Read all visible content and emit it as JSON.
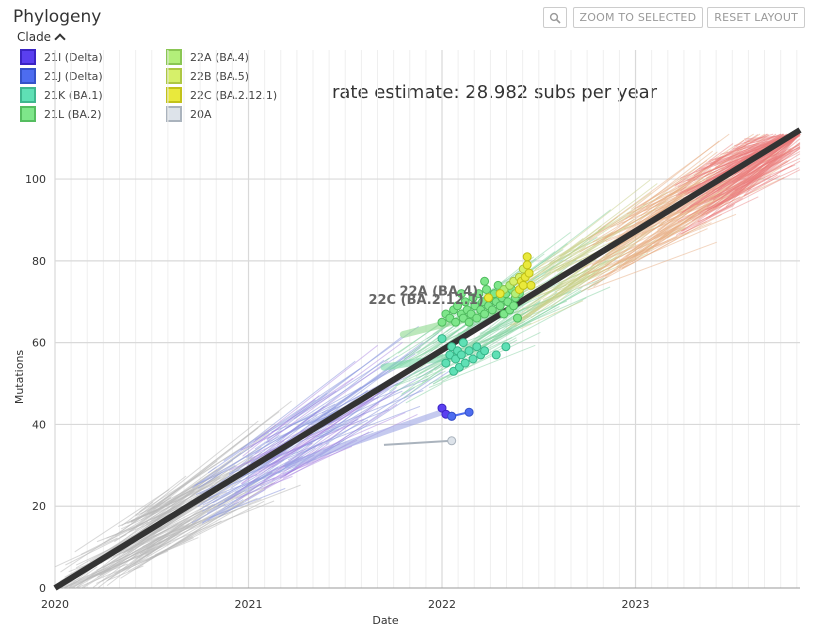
{
  "panel": {
    "title": "Phylogeny"
  },
  "toolbar": {
    "zoom_icon": "magnifier-icon",
    "zoom_label": "ZOOM TO SELECTED",
    "reset_label": "RESET LAYOUT"
  },
  "legend": {
    "toggle_label": "Clade",
    "items": [
      {
        "label": "21I (Delta)",
        "fill": "#5a3ff0",
        "stroke": "#3b24c4"
      },
      {
        "label": "21J (Delta)",
        "fill": "#4d6cf0",
        "stroke": "#3552c9"
      },
      {
        "label": "21K (BA.1)",
        "fill": "#5fe0b5",
        "stroke": "#3fb78f"
      },
      {
        "label": "21L (BA.2)",
        "fill": "#7ee68a",
        "stroke": "#55bd60"
      },
      {
        "label": "22A (BA.4)",
        "fill": "#b3ef7a",
        "stroke": "#8ac653"
      },
      {
        "label": "22B (BA.5)",
        "fill": "#d6f06a",
        "stroke": "#adc743"
      },
      {
        "label": "22C (BA.2.12.1)",
        "fill": "#e9e93c",
        "stroke": "#c2c21a"
      },
      {
        "label": "20A",
        "fill": "#dde3ea",
        "stroke": "#aab3bd"
      }
    ]
  },
  "annotation": {
    "rate_text": "rate estimate: 28.982 subs per year"
  },
  "chart_data": {
    "type": "scatter",
    "title": "rate estimate: 28.982 subs per year",
    "xlabel": "Date",
    "ylabel": "Mutations",
    "xlim": [
      2020.0,
      2023.85
    ],
    "ylim": [
      0,
      112
    ],
    "x_ticks": [
      2020,
      2021,
      2022,
      2023
    ],
    "x_tick_labels": [
      "2020",
      "2021",
      "2022",
      "2023"
    ],
    "y_ticks": [
      0,
      20,
      40,
      60,
      80,
      100
    ],
    "grid": true,
    "regression": {
      "x": [
        2020.0,
        2023.85
      ],
      "y": [
        0,
        112
      ],
      "rate": 28.982,
      "color": "#333333"
    },
    "clade_labels": [
      {
        "text": "22A (BA.4)",
        "x": 2021.78,
        "y": 71.5
      },
      {
        "text": "22C (BA.2.12.1)",
        "x": 2021.62,
        "y": 69.5
      }
    ],
    "series": [
      {
        "name": "21I (Delta)",
        "color": "#5a3ff0",
        "edge": "#3b24c4",
        "points": [
          [
            2022.0,
            44
          ],
          [
            2022.02,
            42.5
          ],
          [
            2022.05,
            42
          ]
        ]
      },
      {
        "name": "21J (Delta)",
        "color": "#4d6cf0",
        "edge": "#3552c9",
        "points": [
          [
            2022.05,
            42
          ],
          [
            2022.14,
            43
          ]
        ]
      },
      {
        "name": "20A",
        "color": "#dde3ea",
        "edge": "#aab3bd",
        "points": [
          [
            2022.05,
            36
          ]
        ]
      },
      {
        "name": "21K (BA.1)",
        "color": "#5fe0b5",
        "edge": "#36b488",
        "points": [
          [
            2022.0,
            61
          ],
          [
            2022.02,
            55
          ],
          [
            2022.04,
            57
          ],
          [
            2022.05,
            59
          ],
          [
            2022.06,
            53
          ],
          [
            2022.07,
            56
          ],
          [
            2022.08,
            58
          ],
          [
            2022.09,
            54
          ],
          [
            2022.1,
            57
          ],
          [
            2022.11,
            60
          ],
          [
            2022.12,
            55
          ],
          [
            2022.14,
            58
          ],
          [
            2022.16,
            56
          ],
          [
            2022.18,
            59
          ],
          [
            2022.2,
            57
          ],
          [
            2022.22,
            58
          ],
          [
            2022.28,
            57
          ],
          [
            2022.33,
            59
          ]
        ]
      },
      {
        "name": "21L (BA.2)",
        "color": "#7ee68a",
        "edge": "#4fba5e",
        "points": [
          [
            2022.0,
            65
          ],
          [
            2022.02,
            67
          ],
          [
            2022.04,
            66
          ],
          [
            2022.06,
            68
          ],
          [
            2022.07,
            65
          ],
          [
            2022.08,
            69
          ],
          [
            2022.1,
            67
          ],
          [
            2022.11,
            66
          ],
          [
            2022.12,
            70
          ],
          [
            2022.13,
            68
          ],
          [
            2022.14,
            65
          ],
          [
            2022.15,
            67
          ],
          [
            2022.16,
            71
          ],
          [
            2022.17,
            69
          ],
          [
            2022.18,
            66
          ],
          [
            2022.19,
            72
          ],
          [
            2022.2,
            68
          ],
          [
            2022.21,
            70
          ],
          [
            2022.22,
            67
          ],
          [
            2022.23,
            73
          ],
          [
            2022.24,
            69
          ],
          [
            2022.25,
            71
          ],
          [
            2022.26,
            68
          ],
          [
            2022.27,
            72
          ],
          [
            2022.28,
            70
          ],
          [
            2022.29,
            74
          ],
          [
            2022.3,
            69
          ],
          [
            2022.31,
            71
          ],
          [
            2022.32,
            67
          ],
          [
            2022.33,
            72
          ],
          [
            2022.34,
            70
          ],
          [
            2022.35,
            68
          ],
          [
            2022.36,
            73
          ],
          [
            2022.37,
            69
          ],
          [
            2022.38,
            71
          ],
          [
            2022.39,
            66
          ],
          [
            2022.4,
            72
          ],
          [
            2022.22,
            75
          ],
          [
            2022.1,
            72
          ]
        ]
      },
      {
        "name": "22A (BA.4)",
        "color": "#b3ef7a",
        "edge": "#84c44f",
        "points": [
          [
            2022.32,
            73
          ],
          [
            2022.35,
            74
          ],
          [
            2022.38,
            72
          ]
        ]
      },
      {
        "name": "22B (BA.5)",
        "color": "#d6f06a",
        "edge": "#a8c23d",
        "points": [
          [
            2022.37,
            75
          ],
          [
            2022.4,
            76
          ],
          [
            2022.42,
            78
          ]
        ]
      },
      {
        "name": "22C (BA.2.12.1)",
        "color": "#e9e93c",
        "edge": "#bfbf14",
        "points": [
          [
            2022.24,
            71
          ],
          [
            2022.3,
            72
          ],
          [
            2022.4,
            73
          ],
          [
            2022.41,
            75
          ],
          [
            2022.42,
            74
          ],
          [
            2022.43,
            76
          ],
          [
            2022.44,
            81
          ],
          [
            2022.44,
            79
          ],
          [
            2022.45,
            77
          ],
          [
            2022.46,
            74
          ]
        ]
      }
    ]
  }
}
